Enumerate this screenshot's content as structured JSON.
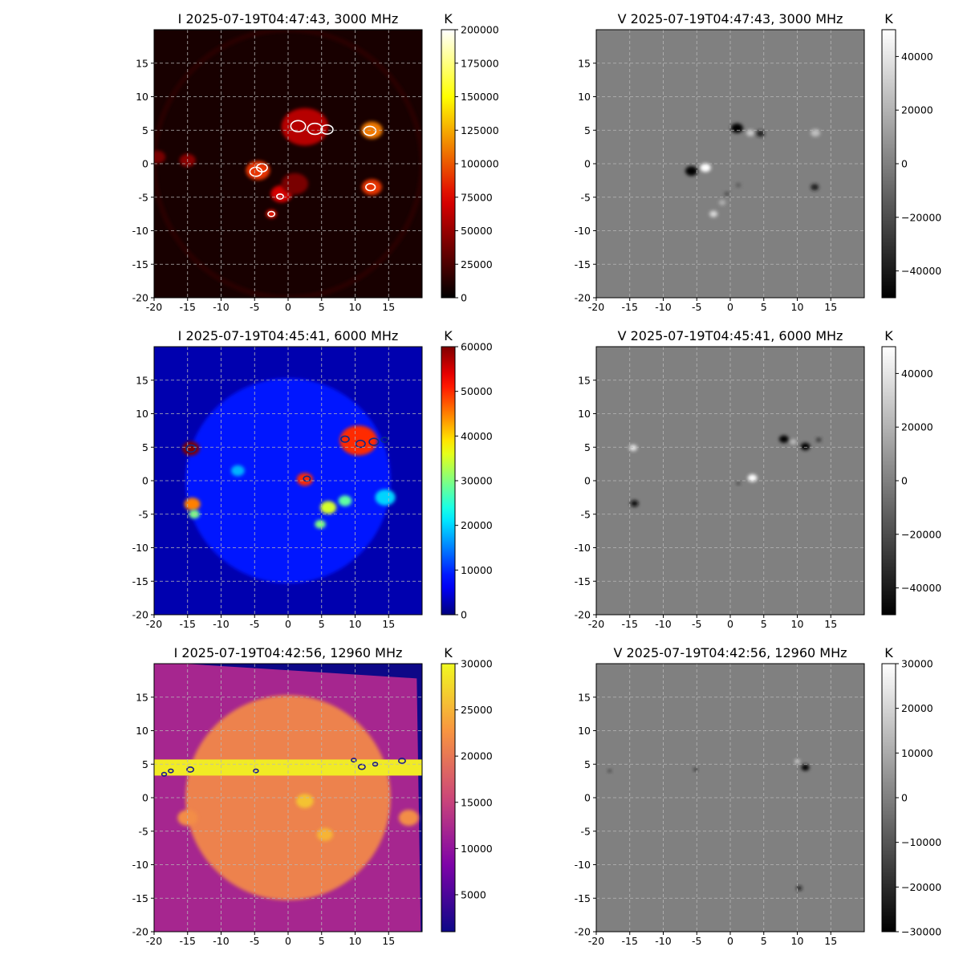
{
  "chart_data": [
    {
      "type": "heatmap",
      "title": "I 2025-07-19T04:47:43, 3000 MHz",
      "stokes": "I",
      "colormap": "hot",
      "colorbar_label": "K",
      "clim": [
        0,
        200000
      ],
      "colorbar_ticks": [
        {
          "v": 0,
          "t": "0"
        },
        {
          "v": 25000,
          "t": "25000"
        },
        {
          "v": 50000,
          "t": "50000"
        },
        {
          "v": 75000,
          "t": "75000"
        },
        {
          "v": 100000,
          "t": "100000"
        },
        {
          "v": 125000,
          "t": "125000"
        },
        {
          "v": 150000,
          "t": "150000"
        },
        {
          "v": 175000,
          "t": "175000"
        },
        {
          "v": 200000,
          "t": "200000"
        }
      ],
      "xlim": [
        -20,
        20
      ],
      "ylim": [
        -20,
        20
      ],
      "xticks": [
        {
          "v": -20,
          "t": "-20"
        },
        {
          "v": -15,
          "t": "-15"
        },
        {
          "v": -10,
          "t": "-10"
        },
        {
          "v": -5,
          "t": "-5"
        },
        {
          "v": 0,
          "t": "0"
        },
        {
          "v": 5,
          "t": "5"
        },
        {
          "v": 10,
          "t": "10"
        },
        {
          "v": 15,
          "t": "15"
        }
      ],
      "yticks": [
        {
          "v": -20,
          "t": "-20"
        },
        {
          "v": -15,
          "t": "-15"
        },
        {
          "v": -10,
          "t": "-10"
        },
        {
          "v": -5,
          "t": "-5"
        },
        {
          "v": 0,
          "t": "0"
        },
        {
          "v": 5,
          "t": "5"
        },
        {
          "v": 10,
          "t": "10"
        },
        {
          "v": 15,
          "t": "15"
        }
      ],
      "grid": true,
      "background_value": 8000,
      "features": [
        {
          "x": 0,
          "y": 0,
          "r": 20,
          "v": 14000,
          "kind": "limb-ring"
        },
        {
          "x": 2.5,
          "y": 5.5,
          "r": 3.5,
          "v": 60000
        },
        {
          "x": 12.5,
          "y": 5,
          "r": 1.6,
          "v": 110000
        },
        {
          "x": 12.5,
          "y": -3.5,
          "r": 1.5,
          "v": 90000
        },
        {
          "x": -4.5,
          "y": -1,
          "r": 1.8,
          "v": 90000
        },
        {
          "x": -1,
          "y": -4.5,
          "r": 1.6,
          "v": 70000
        },
        {
          "x": -2.5,
          "y": -7.5,
          "r": 0.8,
          "v": 80000
        },
        {
          "x": -15,
          "y": 0.5,
          "r": 1.2,
          "v": 45000
        },
        {
          "x": -19.5,
          "y": 1,
          "r": 1.2,
          "v": 40000
        },
        {
          "x": 1,
          "y": -3,
          "r": 2,
          "v": 40000
        }
      ],
      "contours": [
        {
          "x": 1.5,
          "y": 5.6,
          "r": 1.1,
          "c": "#ffffff"
        },
        {
          "x": 4,
          "y": 5.2,
          "r": 1.1,
          "c": "#ffffff"
        },
        {
          "x": 5.8,
          "y": 5.1,
          "r": 0.9,
          "c": "#ffffff"
        },
        {
          "x": 12.2,
          "y": 4.9,
          "r": 0.9,
          "c": "#ffffff"
        },
        {
          "x": 12.3,
          "y": -3.5,
          "r": 0.7,
          "c": "#ffffff"
        },
        {
          "x": -4.8,
          "y": -1.2,
          "r": 0.9,
          "c": "#ffffff"
        },
        {
          "x": -3.9,
          "y": -0.6,
          "r": 0.8,
          "c": "#ffffff"
        },
        {
          "x": -1.2,
          "y": -4.9,
          "r": 0.5,
          "c": "#ffffff"
        },
        {
          "x": -2.5,
          "y": -7.5,
          "r": 0.5,
          "c": "#ffffff"
        }
      ]
    },
    {
      "type": "heatmap",
      "title": "V 2025-07-19T04:47:43, 3000 MHz",
      "stokes": "V",
      "colormap": "gray",
      "colorbar_label": "K",
      "clim": [
        -50000,
        50000
      ],
      "colorbar_ticks": [
        {
          "v": -40000,
          "t": "−40000"
        },
        {
          "v": -20000,
          "t": "−20000"
        },
        {
          "v": 0,
          "t": "0"
        },
        {
          "v": 20000,
          "t": "20000"
        },
        {
          "v": 40000,
          "t": "40000"
        }
      ],
      "xlim": [
        -20,
        20
      ],
      "ylim": [
        -20,
        20
      ],
      "xticks": [
        {
          "v": -20,
          "t": "-20"
        },
        {
          "v": -15,
          "t": "-15"
        },
        {
          "v": -10,
          "t": "-10"
        },
        {
          "v": -5,
          "t": "-5"
        },
        {
          "v": 0,
          "t": "0"
        },
        {
          "v": 5,
          "t": "5"
        },
        {
          "v": 10,
          "t": "10"
        },
        {
          "v": 15,
          "t": "15"
        }
      ],
      "yticks": [
        {
          "v": -20,
          "t": "-20"
        },
        {
          "v": -15,
          "t": "-15"
        },
        {
          "v": -10,
          "t": "-10"
        },
        {
          "v": -5,
          "t": "-5"
        },
        {
          "v": 0,
          "t": "0"
        },
        {
          "v": 5,
          "t": "5"
        },
        {
          "v": 10,
          "t": "10"
        },
        {
          "v": 15,
          "t": "15"
        }
      ],
      "grid": true,
      "background_value": 0,
      "features": [
        {
          "x": 1,
          "y": 5.3,
          "r": 0.9,
          "v": -50000
        },
        {
          "x": 3,
          "y": 4.6,
          "r": 0.6,
          "v": 30000
        },
        {
          "x": 4.5,
          "y": 4.5,
          "r": 0.6,
          "v": -40000
        },
        {
          "x": 12.7,
          "y": 4.6,
          "r": 0.7,
          "v": 25000
        },
        {
          "x": -5.8,
          "y": -1.1,
          "r": 0.9,
          "v": -50000
        },
        {
          "x": -3.7,
          "y": -0.6,
          "r": 0.8,
          "v": 50000
        },
        {
          "x": 12.6,
          "y": -3.5,
          "r": 0.6,
          "v": -40000
        },
        {
          "x": -2.5,
          "y": -7.5,
          "r": 0.6,
          "v": 35000
        },
        {
          "x": -1.2,
          "y": -5.8,
          "r": 0.5,
          "v": 20000
        },
        {
          "x": -0.5,
          "y": -4.5,
          "r": 0.4,
          "v": -20000
        },
        {
          "x": 1.2,
          "y": -3.2,
          "r": 0.4,
          "v": -15000
        }
      ],
      "contours": []
    },
    {
      "type": "heatmap",
      "title": "I 2025-07-19T04:45:41, 6000 MHz",
      "stokes": "I",
      "colormap": "jet",
      "colorbar_label": "K",
      "clim": [
        0,
        60000
      ],
      "colorbar_ticks": [
        {
          "v": 0,
          "t": "0"
        },
        {
          "v": 10000,
          "t": "10000"
        },
        {
          "v": 20000,
          "t": "20000"
        },
        {
          "v": 30000,
          "t": "30000"
        },
        {
          "v": 40000,
          "t": "40000"
        },
        {
          "v": 50000,
          "t": "50000"
        },
        {
          "v": 60000,
          "t": "60000"
        }
      ],
      "xlim": [
        -20,
        20
      ],
      "ylim": [
        -20,
        20
      ],
      "xticks": [
        {
          "v": -20,
          "t": "-20"
        },
        {
          "v": -15,
          "t": "-15"
        },
        {
          "v": -10,
          "t": "-10"
        },
        {
          "v": -5,
          "t": "-5"
        },
        {
          "v": 0,
          "t": "0"
        },
        {
          "v": 5,
          "t": "5"
        },
        {
          "v": 10,
          "t": "10"
        },
        {
          "v": 15,
          "t": "15"
        }
      ],
      "yticks": [
        {
          "v": -20,
          "t": "-20"
        },
        {
          "v": -15,
          "t": "-15"
        },
        {
          "v": -10,
          "t": "-10"
        },
        {
          "v": -5,
          "t": "-5"
        },
        {
          "v": 0,
          "t": "0"
        },
        {
          "v": 5,
          "t": "5"
        },
        {
          "v": 10,
          "t": "10"
        },
        {
          "v": 15,
          "t": "15"
        }
      ],
      "grid": true,
      "background_value": 2500,
      "disk": {
        "x": 0,
        "y": 0,
        "r": 15.3,
        "v": 9000
      },
      "features": [
        {
          "x": -14.5,
          "y": 4.8,
          "r": 1.3,
          "v": 60000
        },
        {
          "x": -14.3,
          "y": -3.5,
          "r": 1.2,
          "v": 45000
        },
        {
          "x": -14,
          "y": -5,
          "r": 0.8,
          "v": 30000
        },
        {
          "x": 2.5,
          "y": 0.2,
          "r": 1.2,
          "v": 50000
        },
        {
          "x": 10.5,
          "y": 6,
          "r": 2.8,
          "v": 50000
        },
        {
          "x": 6,
          "y": -4,
          "r": 1.2,
          "v": 35000
        },
        {
          "x": 4.8,
          "y": -6.5,
          "r": 0.8,
          "v": 30000
        },
        {
          "x": 8.5,
          "y": -3,
          "r": 1,
          "v": 28000
        },
        {
          "x": -7.5,
          "y": 1.5,
          "r": 1,
          "v": 18000
        },
        {
          "x": 14.5,
          "y": -2.5,
          "r": 1.5,
          "v": 20000
        }
      ],
      "contours": [
        {
          "x": -14.5,
          "y": 4.8,
          "r": 0.7,
          "c": "#0a2a8a"
        },
        {
          "x": 8.5,
          "y": 6.2,
          "r": 0.6,
          "c": "#0a2a8a"
        },
        {
          "x": 10.8,
          "y": 5.5,
          "r": 0.7,
          "c": "#0a2a8a"
        },
        {
          "x": 12.8,
          "y": 5.8,
          "r": 0.7,
          "c": "#0a2a8a"
        },
        {
          "x": 14.4,
          "y": 6.1,
          "r": 0.5,
          "c": "#0a2a8a"
        },
        {
          "x": 2.8,
          "y": 0.3,
          "r": 0.5,
          "c": "#0a2a8a"
        }
      ]
    },
    {
      "type": "heatmap",
      "title": "V 2025-07-19T04:45:41, 6000 MHz",
      "stokes": "V",
      "colormap": "gray",
      "colorbar_label": "K",
      "clim": [
        -50000,
        50000
      ],
      "colorbar_ticks": [
        {
          "v": -40000,
          "t": "−40000"
        },
        {
          "v": -20000,
          "t": "−20000"
        },
        {
          "v": 0,
          "t": "0"
        },
        {
          "v": 20000,
          "t": "20000"
        },
        {
          "v": 40000,
          "t": "40000"
        }
      ],
      "xlim": [
        -20,
        20
      ],
      "ylim": [
        -20,
        20
      ],
      "xticks": [
        {
          "v": -20,
          "t": "-20"
        },
        {
          "v": -15,
          "t": "-15"
        },
        {
          "v": -10,
          "t": "-10"
        },
        {
          "v": -5,
          "t": "-5"
        },
        {
          "v": 0,
          "t": "0"
        },
        {
          "v": 5,
          "t": "5"
        },
        {
          "v": 10,
          "t": "10"
        },
        {
          "v": 15,
          "t": "15"
        }
      ],
      "yticks": [
        {
          "v": -20,
          "t": "-20"
        },
        {
          "v": -15,
          "t": "-15"
        },
        {
          "v": -10,
          "t": "-10"
        },
        {
          "v": -5,
          "t": "-5"
        },
        {
          "v": 0,
          "t": "0"
        },
        {
          "v": 5,
          "t": "5"
        },
        {
          "v": 10,
          "t": "10"
        },
        {
          "v": 15,
          "t": "15"
        }
      ],
      "grid": true,
      "background_value": 0,
      "features": [
        {
          "x": -14.5,
          "y": 4.9,
          "r": 0.6,
          "v": 40000
        },
        {
          "x": -14.3,
          "y": -3.4,
          "r": 0.6,
          "v": -45000
        },
        {
          "x": 8,
          "y": 6.2,
          "r": 0.7,
          "v": -50000
        },
        {
          "x": 9.4,
          "y": 5.8,
          "r": 0.5,
          "v": 25000
        },
        {
          "x": 11.2,
          "y": 5.1,
          "r": 0.7,
          "v": -50000
        },
        {
          "x": 13.2,
          "y": 6.1,
          "r": 0.4,
          "v": -30000
        },
        {
          "x": 3.3,
          "y": 0.4,
          "r": 0.7,
          "v": 50000
        },
        {
          "x": 1.2,
          "y": -0.4,
          "r": 0.3,
          "v": -25000
        }
      ],
      "contours": []
    },
    {
      "type": "heatmap",
      "title": "I 2025-07-19T04:42:56, 12960 MHz",
      "stokes": "I",
      "colormap": "plasma",
      "colorbar_label": "K",
      "clim": [
        1000,
        30000
      ],
      "colorbar_ticks": [
        {
          "v": 5000,
          "t": "5000"
        },
        {
          "v": 10000,
          "t": "10000"
        },
        {
          "v": 15000,
          "t": "15000"
        },
        {
          "v": 20000,
          "t": "20000"
        },
        {
          "v": 25000,
          "t": "25000"
        },
        {
          "v": 30000,
          "t": "30000"
        }
      ],
      "xlim": [
        -20,
        20
      ],
      "ylim": [
        -20,
        20
      ],
      "xticks": [
        {
          "v": -20,
          "t": "-20"
        },
        {
          "v": -15,
          "t": "-15"
        },
        {
          "v": -10,
          "t": "-10"
        },
        {
          "v": -5,
          "t": "-5"
        },
        {
          "v": 0,
          "t": "0"
        },
        {
          "v": 5,
          "t": "5"
        },
        {
          "v": 10,
          "t": "10"
        },
        {
          "v": 15,
          "t": "15"
        }
      ],
      "yticks": [
        {
          "v": -20,
          "t": "-20"
        },
        {
          "v": -15,
          "t": "-15"
        },
        {
          "v": -10,
          "t": "-10"
        },
        {
          "v": -5,
          "t": "-5"
        },
        {
          "v": 0,
          "t": "0"
        },
        {
          "v": 5,
          "t": "5"
        },
        {
          "v": 10,
          "t": "10"
        },
        {
          "v": 15,
          "t": "15"
        }
      ],
      "grid": true,
      "background_value": 1000,
      "frame_value": 12000,
      "disk": {
        "x": 0,
        "y": 0,
        "r": 15.3,
        "v": 21000
      },
      "features": [
        {
          "x": 2.5,
          "y": -0.5,
          "r": 1.3,
          "v": 26000
        },
        {
          "x": 5.5,
          "y": -5.5,
          "r": 1.2,
          "v": 25000
        },
        {
          "x": -15,
          "y": -3,
          "r": 1.5,
          "v": 22000
        },
        {
          "x": 18,
          "y": -3,
          "r": 1.5,
          "v": 22000
        }
      ],
      "band": {
        "y": 4.5,
        "half_width": 1.2,
        "v": 29000
      },
      "contours": [
        {
          "x": -18.5,
          "y": 3.5,
          "r": 0.35,
          "c": "#1a1a8a"
        },
        {
          "x": -17.5,
          "y": 4,
          "r": 0.35,
          "c": "#1a1a8a"
        },
        {
          "x": -14.6,
          "y": 4.2,
          "r": 0.5,
          "c": "#1a1a8a"
        },
        {
          "x": -4.8,
          "y": 4,
          "r": 0.35,
          "c": "#1a1a8a"
        },
        {
          "x": 9.8,
          "y": 5.6,
          "r": 0.35,
          "c": "#1a1a8a"
        },
        {
          "x": 11,
          "y": 4.6,
          "r": 0.5,
          "c": "#1a1a8a"
        },
        {
          "x": 13,
          "y": 5,
          "r": 0.35,
          "c": "#1a1a8a"
        },
        {
          "x": 17,
          "y": 5.5,
          "r": 0.5,
          "c": "#1a1a8a"
        }
      ]
    },
    {
      "type": "heatmap",
      "title": "V 2025-07-19T04:42:56, 12960 MHz",
      "stokes": "V",
      "colormap": "gray",
      "colorbar_label": "K",
      "clim": [
        -30000,
        30000
      ],
      "colorbar_ticks": [
        {
          "v": -30000,
          "t": "−30000"
        },
        {
          "v": -20000,
          "t": "−20000"
        },
        {
          "v": -10000,
          "t": "−10000"
        },
        {
          "v": 0,
          "t": "0"
        },
        {
          "v": 10000,
          "t": "10000"
        },
        {
          "v": 20000,
          "t": "20000"
        },
        {
          "v": 30000,
          "t": "30000"
        }
      ],
      "xlim": [
        -20,
        20
      ],
      "ylim": [
        -20,
        20
      ],
      "xticks": [
        {
          "v": -20,
          "t": "-20"
        },
        {
          "v": -15,
          "t": "-15"
        },
        {
          "v": -10,
          "t": "-10"
        },
        {
          "v": -5,
          "t": "-5"
        },
        {
          "v": 0,
          "t": "0"
        },
        {
          "v": 5,
          "t": "5"
        },
        {
          "v": 10,
          "t": "10"
        },
        {
          "v": 15,
          "t": "15"
        }
      ],
      "yticks": [
        {
          "v": -20,
          "t": "-20"
        },
        {
          "v": -15,
          "t": "-15"
        },
        {
          "v": -10,
          "t": "-10"
        },
        {
          "v": -5,
          "t": "-5"
        },
        {
          "v": 0,
          "t": "0"
        },
        {
          "v": 5,
          "t": "5"
        },
        {
          "v": 10,
          "t": "10"
        },
        {
          "v": 15,
          "t": "15"
        }
      ],
      "grid": true,
      "background_value": 0,
      "features": [
        {
          "x": 11.2,
          "y": 4.5,
          "r": 0.6,
          "v": -30000
        },
        {
          "x": 10,
          "y": 5.4,
          "r": 0.4,
          "v": 20000
        },
        {
          "x": 10.3,
          "y": -13.5,
          "r": 0.4,
          "v": -25000
        },
        {
          "x": -5.2,
          "y": 4.2,
          "r": 0.3,
          "v": -20000
        },
        {
          "x": -18,
          "y": 4,
          "r": 0.3,
          "v": -15000
        }
      ],
      "contours": []
    }
  ]
}
